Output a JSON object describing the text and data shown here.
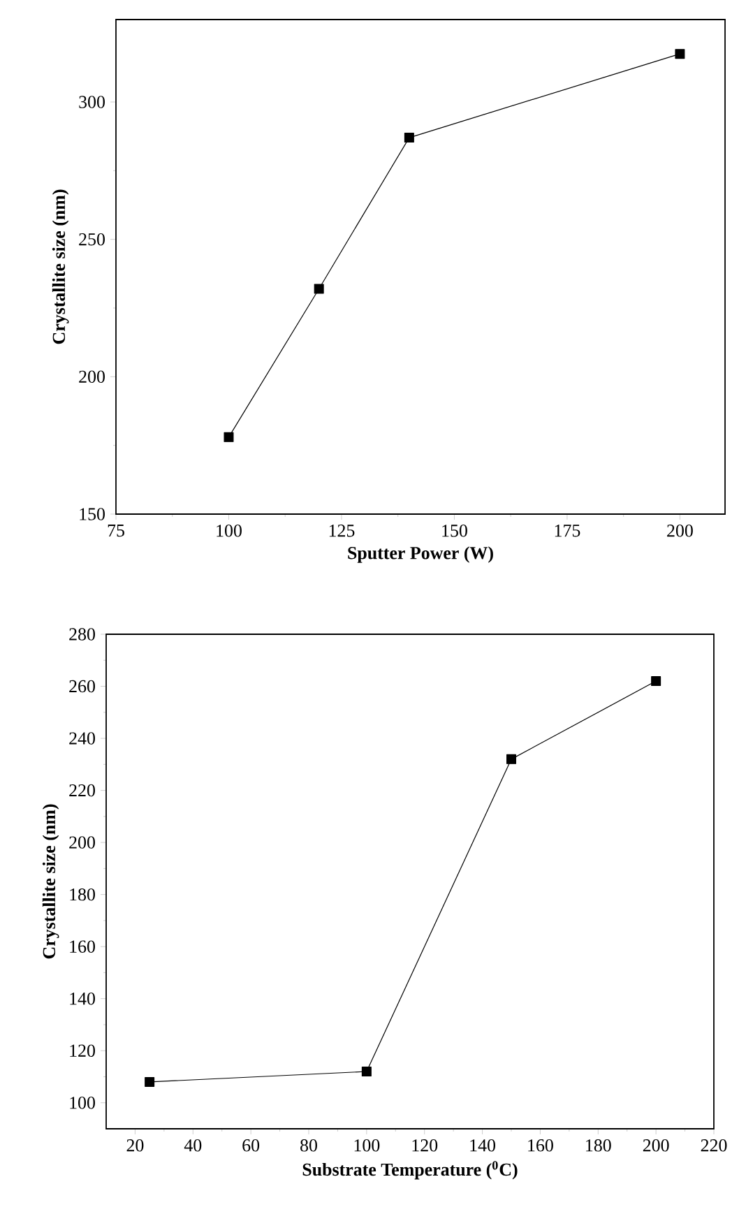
{
  "chart_data": [
    {
      "type": "line",
      "xlabel": "Sputter Power (W)",
      "ylabel": "Crystallite size (nm)",
      "x": [
        100,
        120,
        140,
        200
      ],
      "series": [
        {
          "color": "#000000",
          "values": [
            178,
            232,
            287,
            317.5
          ]
        }
      ],
      "xlim": [
        75,
        210
      ],
      "ylim": [
        150,
        330
      ],
      "xticks": [
        75,
        100,
        125,
        150,
        175,
        200
      ],
      "yticks": [
        150,
        200,
        250,
        300
      ],
      "marker": "square",
      "line_style": "solid"
    },
    {
      "type": "line",
      "xlabel": "Substrate Temperature ($^{0}$C)",
      "ylabel": "Crystallite size (nm)",
      "x": [
        25,
        100,
        150,
        200
      ],
      "series": [
        {
          "color": "#000000",
          "values": [
            108,
            112,
            232,
            262
          ]
        }
      ],
      "xlim": [
        10,
        220
      ],
      "ylim": [
        90,
        280
      ],
      "xticks": [
        20,
        40,
        60,
        80,
        100,
        120,
        140,
        160,
        180,
        200,
        220
      ],
      "yticks": [
        100,
        120,
        140,
        160,
        180,
        200,
        220,
        240,
        260,
        280
      ],
      "marker": "square",
      "line_style": "solid"
    }
  ]
}
